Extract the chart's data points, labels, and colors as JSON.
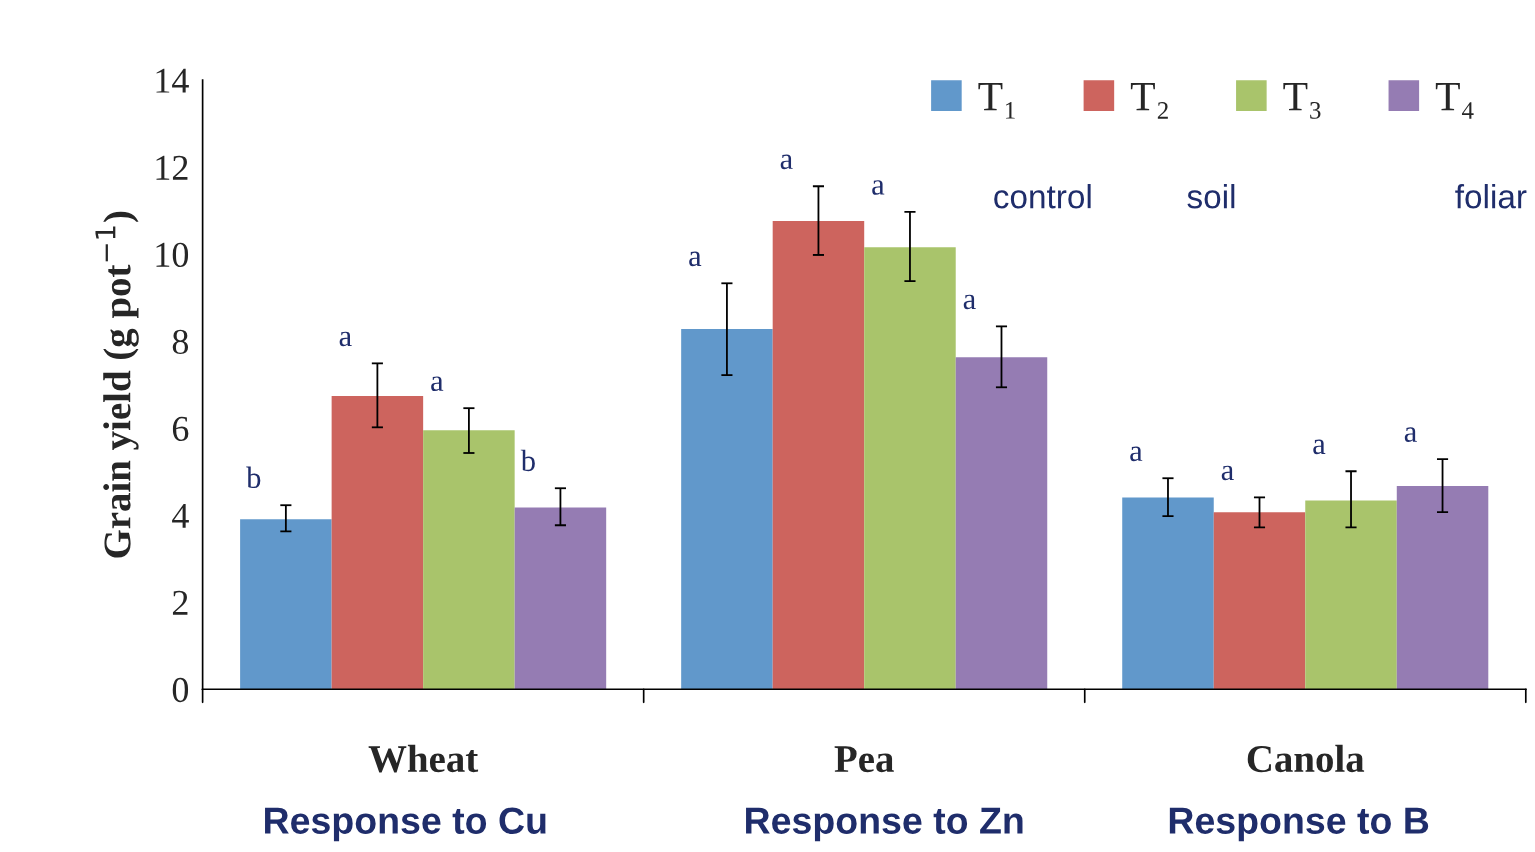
{
  "chart_data": {
    "type": "bar",
    "ylabel": "Grain yield (g pot$^{−1}$)",
    "categories": [
      "Wheat",
      "Pea",
      "Canola"
    ],
    "series": [
      {
        "name": "T₁",
        "color": "#6198cb",
        "values": [
          3.91,
          8.28,
          4.41
        ],
        "errors": [
          [
            3.63,
            4.23
          ],
          [
            7.22,
            9.33
          ],
          [
            3.98,
            4.85
          ]
        ],
        "value_labels": [
          "b",
          "a",
          "a"
        ]
      },
      {
        "name": "T₂",
        "color": "#cd645e",
        "values": [
          6.74,
          10.76,
          4.07
        ],
        "errors": [
          [
            6.02,
            7.49
          ],
          [
            9.98,
            11.56
          ],
          [
            3.72,
            4.41
          ]
        ],
        "value_labels": [
          "a",
          "a",
          "a"
        ]
      },
      {
        "name": "T₃",
        "color": "#a9c46b",
        "values": [
          5.95,
          10.16,
          4.34
        ],
        "errors": [
          [
            5.43,
            6.46
          ],
          [
            9.38,
            10.97
          ],
          [
            3.72,
            5.01
          ]
        ],
        "value_labels": [
          "a",
          "a",
          "a"
        ]
      },
      {
        "name": "T₄",
        "color": "#957cb3",
        "values": [
          4.18,
          7.63,
          4.67
        ],
        "errors": [
          [
            3.77,
            4.62
          ],
          [
            6.94,
            8.34
          ],
          [
            4.07,
            5.29
          ]
        ],
        "value_labels": [
          "b",
          "a",
          "a"
        ]
      }
    ],
    "ylim": [
      0,
      14
    ],
    "yticks": [
      0,
      2,
      4,
      6,
      8,
      10,
      12,
      14
    ],
    "grid": false,
    "legend": "top right",
    "annotations": [
      "control",
      "soil",
      "foliar",
      "Response to Cu",
      "Response to Zn",
      "Response to B"
    ]
  }
}
